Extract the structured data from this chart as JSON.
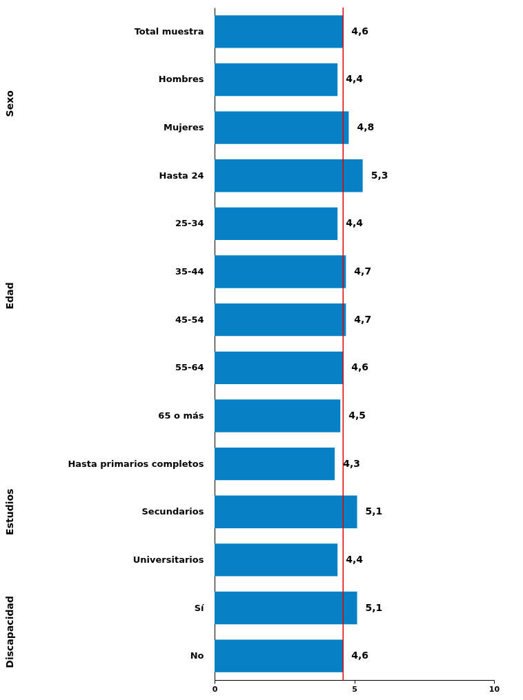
{
  "chart_data": {
    "type": "bar",
    "orientation": "horizontal",
    "categories": [
      "Total muestra",
      "Hombres",
      "Mujeres",
      "Hasta 24",
      "25-34",
      "35-44",
      "45-54",
      "55-64",
      "65 o más",
      "Hasta primarios completos",
      "Secundarios",
      "Universitarios",
      "Sí",
      "No"
    ],
    "values": [
      4.6,
      4.4,
      4.8,
      5.3,
      4.4,
      4.7,
      4.7,
      4.6,
      4.5,
      4.3,
      5.1,
      4.4,
      5.1,
      4.6
    ],
    "value_labels": [
      "4,6",
      "4,4",
      "4,8",
      "5,3",
      "4,4",
      "4,7",
      "4,7",
      "4,6",
      "4,5",
      "4,3",
      "5,1",
      "4,4",
      "5,1",
      "4,6"
    ],
    "color": "#0780c5",
    "xlim": [
      0,
      10
    ],
    "xticks": [
      0,
      5,
      10
    ],
    "grid": false,
    "ref_lines": [
      {
        "axis": "x",
        "value": 4.6,
        "color": "#e00000"
      }
    ],
    "annotations": [
      "Sexo",
      "Edad",
      "Estudios",
      "Discapacidad"
    ]
  }
}
